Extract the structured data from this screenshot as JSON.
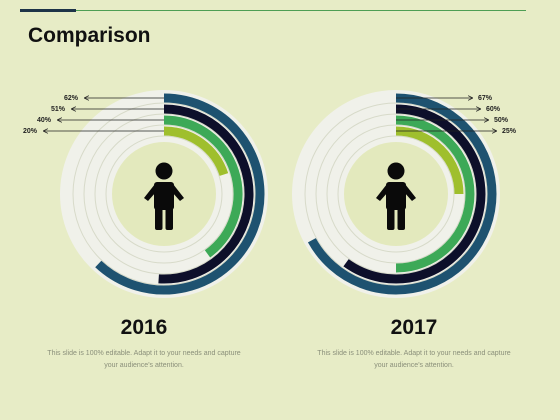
{
  "slide": {
    "title": "Comparison",
    "colors": {
      "background": "#e7ecc6",
      "track": "#f0f1ea",
      "ring1": "#1e5270",
      "ring2": "#0d0f2a",
      "ring3": "#3da957",
      "ring4": "#9fbf2d",
      "inner_circle": "#e3e9bd",
      "person": "#0a0a0a"
    }
  },
  "chart_data": [
    {
      "type": "radial-bar",
      "year": "2016",
      "caption_line1": "This slide is 100% editable. Adapt it to your needs and capture",
      "caption_line2": "your audience's attention.",
      "series": [
        {
          "label": "62%",
          "value": 62
        },
        {
          "label": "51%",
          "value": 51
        },
        {
          "label": "40%",
          "value": 40
        },
        {
          "label": "20%",
          "value": 20
        }
      ],
      "icon": "person-icon"
    },
    {
      "type": "radial-bar",
      "year": "2017",
      "caption_line1": "This slide is 100% editable. Adapt it to your needs and capture",
      "caption_line2": "your audience's attention.",
      "series": [
        {
          "label": "67%",
          "value": 67
        },
        {
          "label": "60%",
          "value": 60
        },
        {
          "label": "50%",
          "value": 50
        },
        {
          "label": "25%",
          "value": 25
        }
      ],
      "icon": "person-icon"
    }
  ]
}
